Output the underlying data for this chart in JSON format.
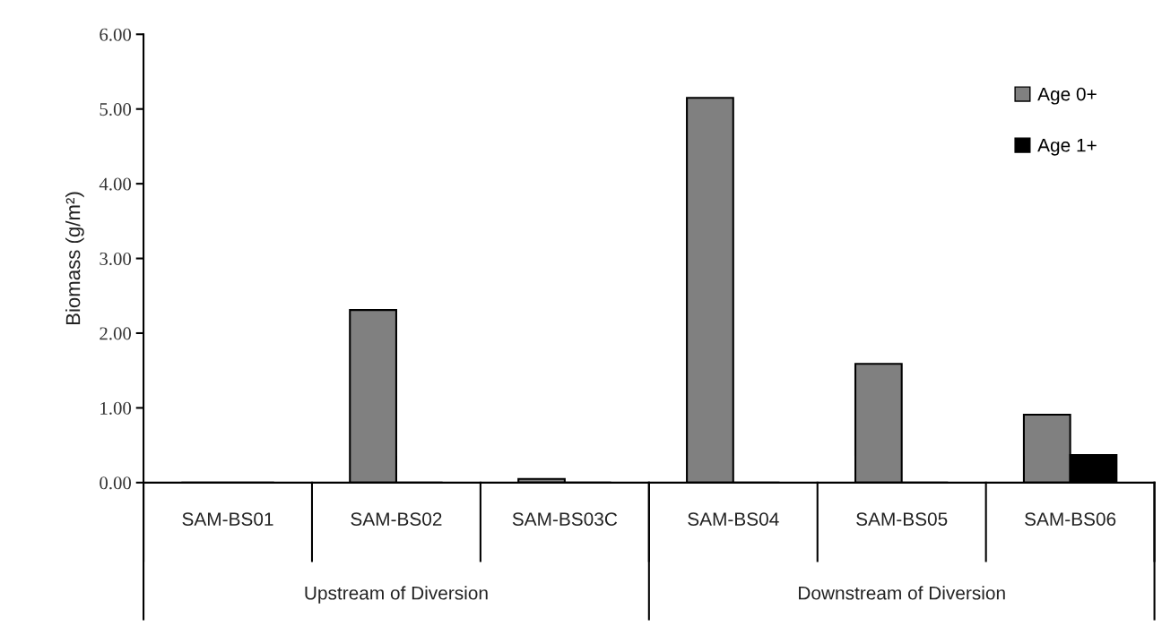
{
  "chart_data": {
    "type": "bar",
    "ylabel": "Biomass (g/m²)",
    "categories": [
      "SAM-BS01",
      "SAM-BS02",
      "SAM-BS03C",
      "SAM-BS04",
      "SAM-BS05",
      "SAM-BS06"
    ],
    "series": [
      {
        "name": "Age 0+",
        "color": "#808080",
        "values": [
          0,
          2.31,
          0.05,
          5.15,
          1.59,
          0.91
        ]
      },
      {
        "name": "Age 1+",
        "color": "#000000",
        "values": [
          0,
          0,
          0,
          0,
          0,
          0.37
        ]
      }
    ],
    "ylim": [
      0,
      6
    ],
    "yticks": [
      {
        "value": 0,
        "label": "0.00"
      },
      {
        "value": 1,
        "label": "1.00"
      },
      {
        "value": 2,
        "label": "2.00"
      },
      {
        "value": 3,
        "label": "3.00"
      },
      {
        "value": 4,
        "label": "4.00"
      },
      {
        "value": 5,
        "label": "5.00"
      },
      {
        "value": 6,
        "label": "6.00"
      }
    ],
    "annotations": [
      "Upstream of Diversion",
      "Downstream of Diversion"
    ],
    "legend": "top right",
    "grid": false
  }
}
